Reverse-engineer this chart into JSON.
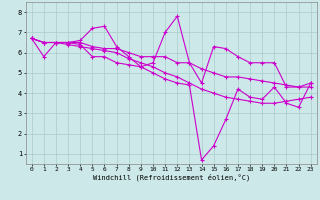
{
  "xlabel": "Windchill (Refroidissement éolien,°C)",
  "bg_color": "#cce8e8",
  "line_color": "#cc00cc",
  "marker": "+",
  "markersize": 3,
  "linewidth": 0.8,
  "xlim": [
    -0.5,
    23.5
  ],
  "ylim": [
    0.5,
    8.5
  ],
  "xticks": [
    0,
    1,
    2,
    3,
    4,
    5,
    6,
    7,
    8,
    9,
    10,
    11,
    12,
    13,
    14,
    15,
    16,
    17,
    18,
    19,
    20,
    21,
    22,
    23
  ],
  "yticks": [
    1,
    2,
    3,
    4,
    5,
    6,
    7,
    8
  ],
  "grid_color": "#aacccc",
  "series": [
    [
      6.7,
      5.8,
      6.5,
      6.5,
      6.6,
      7.2,
      7.3,
      6.3,
      5.8,
      5.3,
      5.5,
      7.0,
      7.8,
      5.5,
      4.5,
      6.3,
      6.2,
      5.8,
      5.5,
      5.5,
      5.5,
      4.3,
      4.3,
      4.5
    ],
    [
      6.7,
      6.5,
      6.5,
      6.5,
      6.5,
      6.3,
      6.2,
      6.2,
      6.0,
      5.8,
      5.8,
      5.8,
      5.5,
      5.5,
      5.2,
      5.0,
      4.8,
      4.8,
      4.7,
      4.6,
      4.5,
      4.4,
      4.3,
      4.3
    ],
    [
      6.7,
      6.5,
      6.5,
      6.5,
      6.4,
      5.8,
      5.8,
      5.5,
      5.4,
      5.3,
      5.0,
      4.7,
      4.5,
      4.4,
      0.7,
      1.4,
      2.7,
      4.2,
      3.8,
      3.7,
      4.3,
      3.5,
      3.3,
      4.5
    ],
    [
      6.7,
      6.5,
      6.5,
      6.4,
      6.3,
      6.2,
      6.1,
      6.0,
      5.7,
      5.5,
      5.3,
      5.0,
      4.8,
      4.5,
      4.2,
      4.0,
      3.8,
      3.7,
      3.6,
      3.5,
      3.5,
      3.6,
      3.7,
      3.8
    ]
  ]
}
